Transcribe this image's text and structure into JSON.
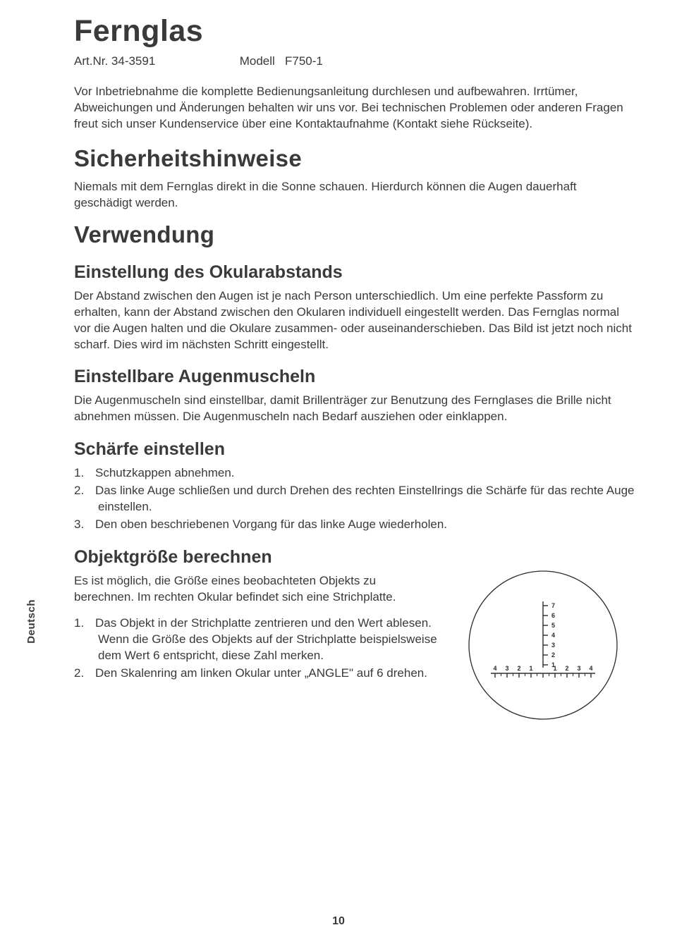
{
  "title": "Fernglas",
  "art_label": "Art.Nr.",
  "art_value": "34-3591",
  "model_label": "Modell",
  "model_value": "F750-1",
  "intro": "Vor Inbetriebnahme die komplette Bedienungsanleitung durchlesen und aufbewahren. Irrtümer, Abweichungen und Änderungen behalten wir uns vor. Bei technischen Problemen oder anderen Fragen freut sich unser Kundenservice über eine Kontaktaufnahme (Kontakt siehe Rückseite).",
  "safety_heading": "Sicherheitshinweise",
  "safety_text": "Niemals mit dem Fernglas direkt in die Sonne schauen. Hierdurch können die Augen dauerhaft geschädigt werden.",
  "usage_heading": "Verwendung",
  "ocular_heading": "Einstellung des Okularabstands",
  "ocular_text": "Der Abstand zwischen den Augen ist je nach Person unterschiedlich. Um eine perfekte Passform zu erhalten, kann der Abstand zwischen den Okularen individuell eingestellt werden. Das Fernglas normal vor die Augen halten und die Okulare zusammen- oder auseinanderschieben. Das Bild ist jetzt noch nicht scharf. Dies wird im nächsten Schritt eingestellt.",
  "eyecup_heading": "Einstellbare Augenmuscheln",
  "eyecup_text": "Die Augenmuscheln sind einstellbar, damit Brillenträger zur Benutzung des Fernglases die Brille nicht abnehmen müssen. Die Augenmuscheln nach Bedarf ausziehen oder einklappen.",
  "focus_heading": "Schärfe einstellen",
  "focus_steps": [
    "Schutzkappen abnehmen.",
    "Das linke Auge schließen und durch Drehen des rechten Einstellrings die Schärfe für das rechte Auge einstellen.",
    "Den oben beschriebenen Vorgang für das linke Auge wiederholen."
  ],
  "obj_heading": "Objektgröße berechnen",
  "obj_intro": "Es ist möglich, die Größe eines beobachteten Objekts zu berechnen. Im rechten Okular befindet sich eine Strichplatte.",
  "obj_steps": [
    "Das Objekt in der Strichplatte zentrieren und den Wert ablesen. Wenn die Größe des Objekts auf der Strichplatte beispielsweise dem Wert 6 entspricht, diese Zahl merken.",
    "Den Skalenring am linken Okular unter „ANGLE\" auf 6 drehen."
  ],
  "reticle": {
    "v_labels": [
      "7",
      "6",
      "5",
      "4",
      "3",
      "2",
      "1"
    ],
    "h_labels_left": [
      "4",
      "3",
      "2",
      "1"
    ],
    "h_labels_right": [
      "1",
      "2",
      "3",
      "4"
    ],
    "stroke_color": "#2b2b2b",
    "bg_color": "#ffffff"
  },
  "side_tab": "Deutsch",
  "page_number": "10"
}
